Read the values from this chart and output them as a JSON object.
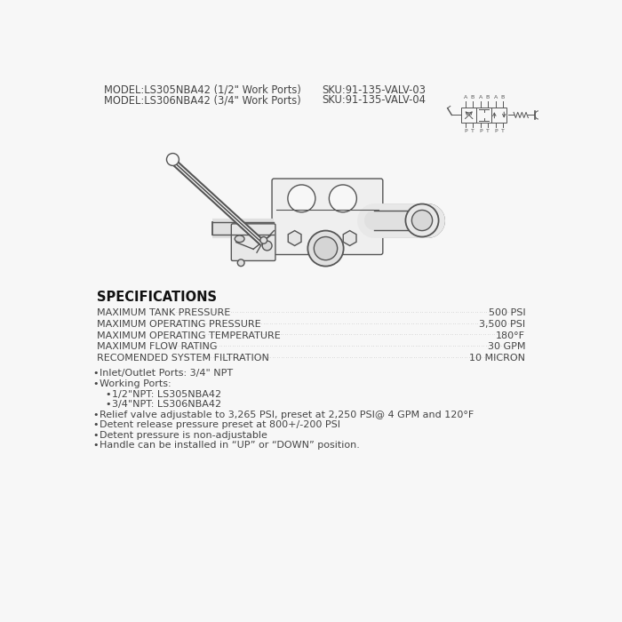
{
  "bg_color": "#f7f7f7",
  "line1_model": "MODEL:LS305NBA42 (1/2\" Work Ports)",
  "line1_sku": "SKU:91-135-VALV-03",
  "line2_model": "MODEL:LS306NBA42 (3/4\" Work Ports)",
  "line2_sku": "SKU:91-135-VALV-04",
  "spec_header": "SPECIFICATIONS",
  "specs": [
    [
      "MAXIMUM TANK PRESSURE",
      "500 PSI"
    ],
    [
      "MAXIMUM OPERATING PRESSURE",
      "3,500 PSI"
    ],
    [
      "MAXIMUM OPERATING TEMPERATURE",
      "180°F"
    ],
    [
      "MAXIMUM FLOW RATING",
      "30 GPM"
    ],
    [
      "RECOMENDED SYSTEM FILTRATION",
      "10 MICRON"
    ]
  ],
  "bullets": [
    "Inlet/Outlet Ports: 3/4\" NPT",
    "Working Ports:",
    "1/2\"NPT: LS305NBA42",
    "3/4\"NPT: LS306NBA42",
    "Relief valve adjustable to 3,265 PSI, preset at 2,250 PSI@ 4 GPM and 120°F",
    "Detent release pressure preset at 800+/-200 PSI",
    "Detent pressure is non-adjustable",
    "Handle can be installed in “UP” or “DOWN” position."
  ],
  "text_color": "#444444",
  "header_color": "#111111",
  "line_color": "#555555",
  "dot_color": "#aaaaaa"
}
